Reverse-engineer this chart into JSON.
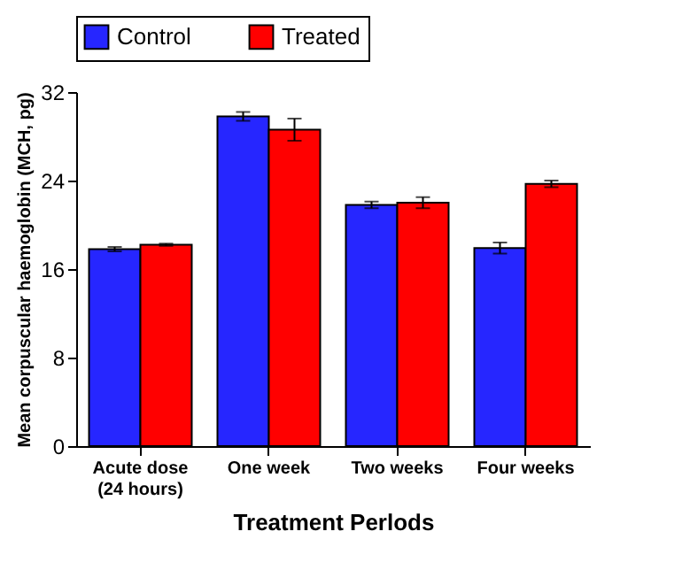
{
  "chart_data": {
    "type": "bar",
    "xlabel": "Treatment Perlods",
    "ylabel": "Mean corpuscular haemoglobin (MCH, pg)",
    "categories": [
      "Acute dose\n(24 hours)",
      "One week",
      "Two weeks",
      "Four weeks"
    ],
    "series": [
      {
        "name": "Control",
        "color": "#2626ff",
        "values": [
          17.8,
          29.8,
          21.8,
          17.9
        ],
        "errors": [
          0.2,
          0.4,
          0.3,
          0.5
        ]
      },
      {
        "name": "Treated",
        "color": "#ff0000",
        "values": [
          18.2,
          28.6,
          22.0,
          23.7
        ],
        "errors": [
          0.1,
          1.0,
          0.5,
          0.3
        ]
      }
    ],
    "ylim": [
      0,
      32
    ],
    "yticks": [
      0,
      8,
      16,
      24,
      32
    ],
    "grid": false,
    "legend": "top"
  }
}
